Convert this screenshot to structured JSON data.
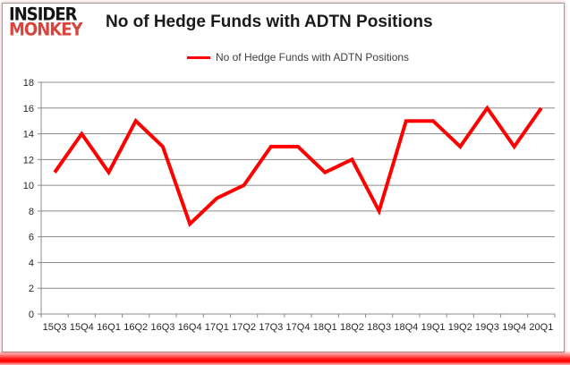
{
  "logo": {
    "line1": "INSIDER",
    "line2": "MONKEY"
  },
  "header": {
    "title": "No of Hedge Funds with ADTN Positions"
  },
  "legend": {
    "label": "No of Hedge Funds with ADTN Positions",
    "line_color": "#ff0000"
  },
  "chart_data": {
    "type": "line",
    "title": "No of Hedge Funds with ADTN Positions",
    "categories": [
      "15Q3",
      "15Q4",
      "16Q1",
      "16Q2",
      "16Q3",
      "16Q4",
      "17Q1",
      "17Q2",
      "17Q3",
      "17Q4",
      "18Q1",
      "18Q2",
      "18Q3",
      "18Q4",
      "19Q1",
      "19Q2",
      "19Q3",
      "19Q4",
      "20Q1"
    ],
    "series": [
      {
        "name": "No of Hedge Funds with ADTN Positions",
        "color": "#ff0000",
        "values": [
          11,
          14,
          11,
          15,
          13,
          7,
          9,
          10,
          13,
          13,
          11,
          12,
          8,
          15,
          15,
          13,
          16,
          13,
          16
        ]
      }
    ],
    "xlabel": "",
    "ylabel": "",
    "ylim": [
      0,
      18
    ],
    "ytick_step": 2,
    "grid": true,
    "legend_position": "top-center"
  },
  "colors": {
    "line": "#ff0000",
    "grid": "#8c8c8c",
    "axis": "#8c8c8c",
    "tick_label": "#262626",
    "logo_red": "#d8453e",
    "glow_red": "#ff0000"
  }
}
